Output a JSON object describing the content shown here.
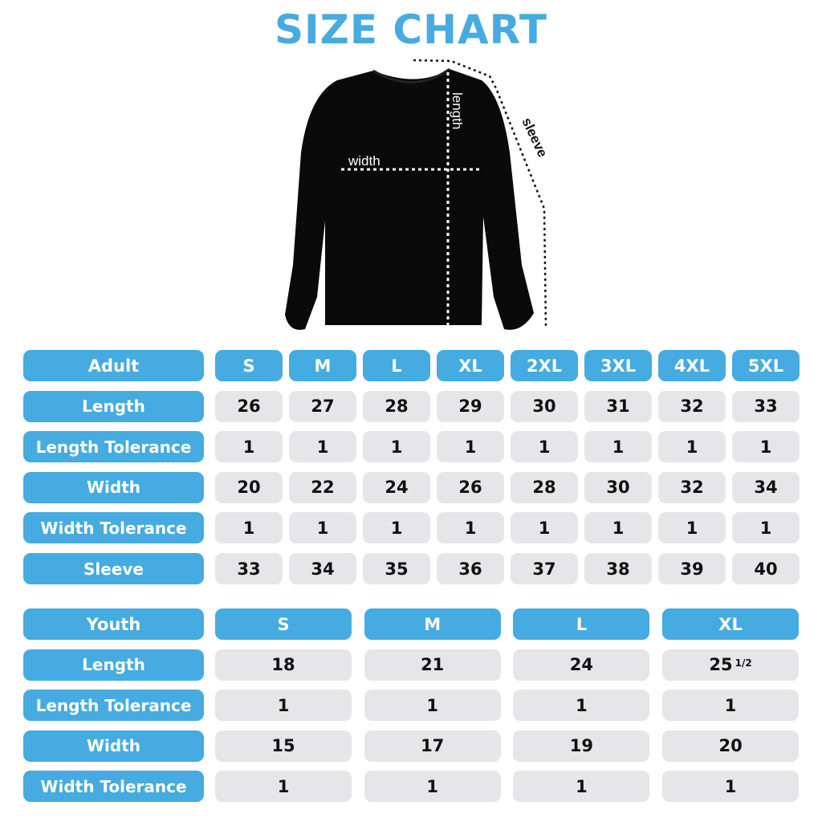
{
  "title": "SIZE CHART",
  "colors": {
    "accent": "#45abe0",
    "cell": "#e6e6e8",
    "garment": "#0a0a0a"
  },
  "diagram": {
    "labels": {
      "length": "length",
      "width": "width",
      "sleeve": "sleeve"
    }
  },
  "adult": {
    "header": "Adult",
    "sizes": [
      "S",
      "M",
      "L",
      "XL",
      "2XL",
      "3XL",
      "4XL",
      "5XL"
    ],
    "rows": [
      {
        "label": "Length",
        "values": [
          "26",
          "27",
          "28",
          "29",
          "30",
          "31",
          "32",
          "33"
        ]
      },
      {
        "label": "Length Tolerance",
        "values": [
          "1",
          "1",
          "1",
          "1",
          "1",
          "1",
          "1",
          "1"
        ]
      },
      {
        "label": "Width",
        "values": [
          "20",
          "22",
          "24",
          "26",
          "28",
          "30",
          "32",
          "34"
        ]
      },
      {
        "label": "Width Tolerance",
        "values": [
          "1",
          "1",
          "1",
          "1",
          "1",
          "1",
          "1",
          "1"
        ]
      },
      {
        "label": "Sleeve",
        "values": [
          "33",
          "34",
          "35",
          "36",
          "37",
          "38",
          "39",
          "40"
        ]
      }
    ]
  },
  "youth": {
    "header": "Youth",
    "sizes": [
      "S",
      "M",
      "L",
      "XL"
    ],
    "rows": [
      {
        "label": "Length",
        "values": [
          "18",
          "21",
          "24",
          "25 1/2"
        ]
      },
      {
        "label": "Length Tolerance",
        "values": [
          "1",
          "1",
          "1",
          "1"
        ]
      },
      {
        "label": "Width",
        "values": [
          "15",
          "17",
          "19",
          "20"
        ]
      },
      {
        "label": "Width Tolerance",
        "values": [
          "1",
          "1",
          "1",
          "1"
        ]
      }
    ]
  }
}
